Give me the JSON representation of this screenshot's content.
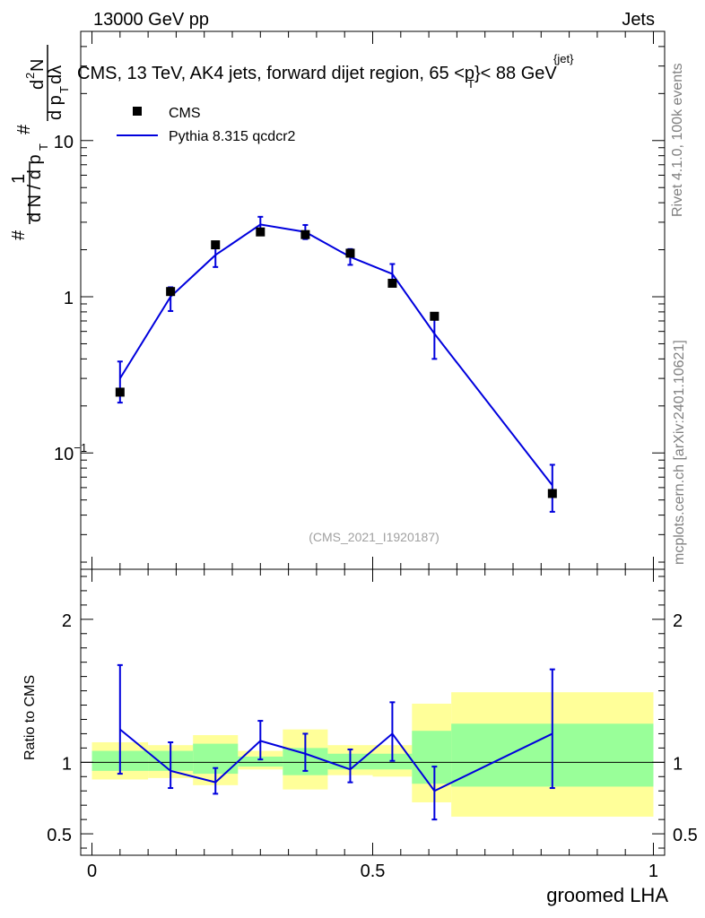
{
  "header": {
    "left": "13000 GeV pp",
    "right": "Jets"
  },
  "title": "CMS, 13 TeV, AK4 jets, forward dijet region, 65 <p",
  "title_sup": "{jet}",
  "title_sub": "T",
  "title_end": "}< 88 GeV",
  "ylabel": {
    "hash": "#",
    "one": "1",
    "dNdpT": "d N / d p",
    "T": "T",
    "d2N": "d",
    "two": "2",
    "N": "N",
    "dpTdl": "d p",
    "dl": " dλ"
  },
  "side_text": {
    "rivet": "Rivet 4.1.0,  100k events",
    "mcplots": "mcplots.cern.ch [arXiv:2401.10621]"
  },
  "watermark": "(CMS_2021_I1920187)",
  "legend": [
    {
      "label": "CMS",
      "kind": "marker",
      "color": "#000000"
    },
    {
      "label": "Pythia 8.315 qcdcr2",
      "kind": "line",
      "color": "#0000dd"
    }
  ],
  "chart_data": [
    {
      "type": "scatter",
      "name": "main",
      "yscale": "log",
      "xlim": [
        -0.02,
        1.02
      ],
      "ylim": [
        0.018,
        50
      ],
      "yticks": [
        {
          "value": 0.1,
          "label": "10",
          "sup": "−1"
        },
        {
          "value": 1,
          "label": "1",
          "sup": ""
        },
        {
          "value": 10,
          "label": "10",
          "sup": ""
        }
      ],
      "x": [
        0.05,
        0.14,
        0.22,
        0.3,
        0.38,
        0.46,
        0.535,
        0.61,
        0.82
      ],
      "series": [
        {
          "name": "CMS",
          "values": [
            0.245,
            1.08,
            2.15,
            2.6,
            2.5,
            1.9,
            1.22,
            0.75,
            0.055
          ]
        },
        {
          "name": "Pythia 8.315 qcdcr2",
          "values": [
            0.3,
            1.0,
            1.85,
            2.9,
            2.6,
            1.8,
            1.4,
            0.58,
            0.062
          ],
          "err_up": [
            0.085,
            0.15,
            0.32,
            0.35,
            0.28,
            0.22,
            0.22,
            0.14,
            0.022
          ],
          "err_down": [
            0.09,
            0.19,
            0.3,
            0.32,
            0.26,
            0.2,
            0.2,
            0.18,
            0.02
          ]
        }
      ]
    },
    {
      "type": "ratio",
      "name": "ratio",
      "xlim": [
        -0.02,
        1.02
      ],
      "ylim": [
        0.35,
        2.35
      ],
      "xlabel": "groomed LHA",
      "ylabel": "Ratio to CMS",
      "xticks": [
        {
          "value": 0,
          "label": "0"
        },
        {
          "value": 0.5,
          "label": "0.5"
        },
        {
          "value": 1,
          "label": "1"
        }
      ],
      "yticks": [
        {
          "value": 0.5,
          "label": "0.5"
        },
        {
          "value": 1,
          "label": "1"
        },
        {
          "value": 2,
          "label": "2"
        }
      ],
      "bands": [
        {
          "x0": 0.0,
          "x1": 0.1,
          "yellow": [
            0.88,
            1.14
          ],
          "green": [
            0.94,
            1.08
          ]
        },
        {
          "x0": 0.1,
          "x1": 0.18,
          "yellow": [
            0.89,
            1.12
          ],
          "green": [
            0.94,
            1.08
          ]
        },
        {
          "x0": 0.18,
          "x1": 0.26,
          "yellow": [
            0.84,
            1.19
          ],
          "green": [
            0.92,
            1.13
          ]
        },
        {
          "x0": 0.26,
          "x1": 0.34,
          "yellow": [
            0.95,
            1.08
          ],
          "green": [
            0.97,
            1.04
          ]
        },
        {
          "x0": 0.34,
          "x1": 0.42,
          "yellow": [
            0.81,
            1.23
          ],
          "green": [
            0.91,
            1.1
          ]
        },
        {
          "x0": 0.42,
          "x1": 0.5,
          "yellow": [
            0.91,
            1.12
          ],
          "green": [
            0.95,
            1.06
          ]
        },
        {
          "x0": 0.5,
          "x1": 0.57,
          "yellow": [
            0.9,
            1.12
          ],
          "green": [
            0.95,
            1.06
          ]
        },
        {
          "x0": 0.57,
          "x1": 0.64,
          "yellow": [
            0.72,
            1.41
          ],
          "green": [
            0.85,
            1.22
          ]
        },
        {
          "x0": 0.64,
          "x1": 1.0,
          "yellow": [
            0.62,
            1.49
          ],
          "green": [
            0.83,
            1.27
          ]
        }
      ],
      "reference": 1.0,
      "x": [
        0.05,
        0.14,
        0.22,
        0.3,
        0.38,
        0.46,
        0.535,
        0.61,
        0.82
      ],
      "values": [
        1.23,
        0.94,
        0.86,
        1.15,
        1.06,
        0.95,
        1.2,
        0.8,
        1.2
      ],
      "err_up": [
        0.45,
        0.2,
        0.1,
        0.14,
        0.14,
        0.14,
        0.22,
        0.17,
        0.45
      ],
      "err_down": [
        0.31,
        0.12,
        0.08,
        0.13,
        0.12,
        0.09,
        0.19,
        0.2,
        0.38
      ]
    }
  ]
}
